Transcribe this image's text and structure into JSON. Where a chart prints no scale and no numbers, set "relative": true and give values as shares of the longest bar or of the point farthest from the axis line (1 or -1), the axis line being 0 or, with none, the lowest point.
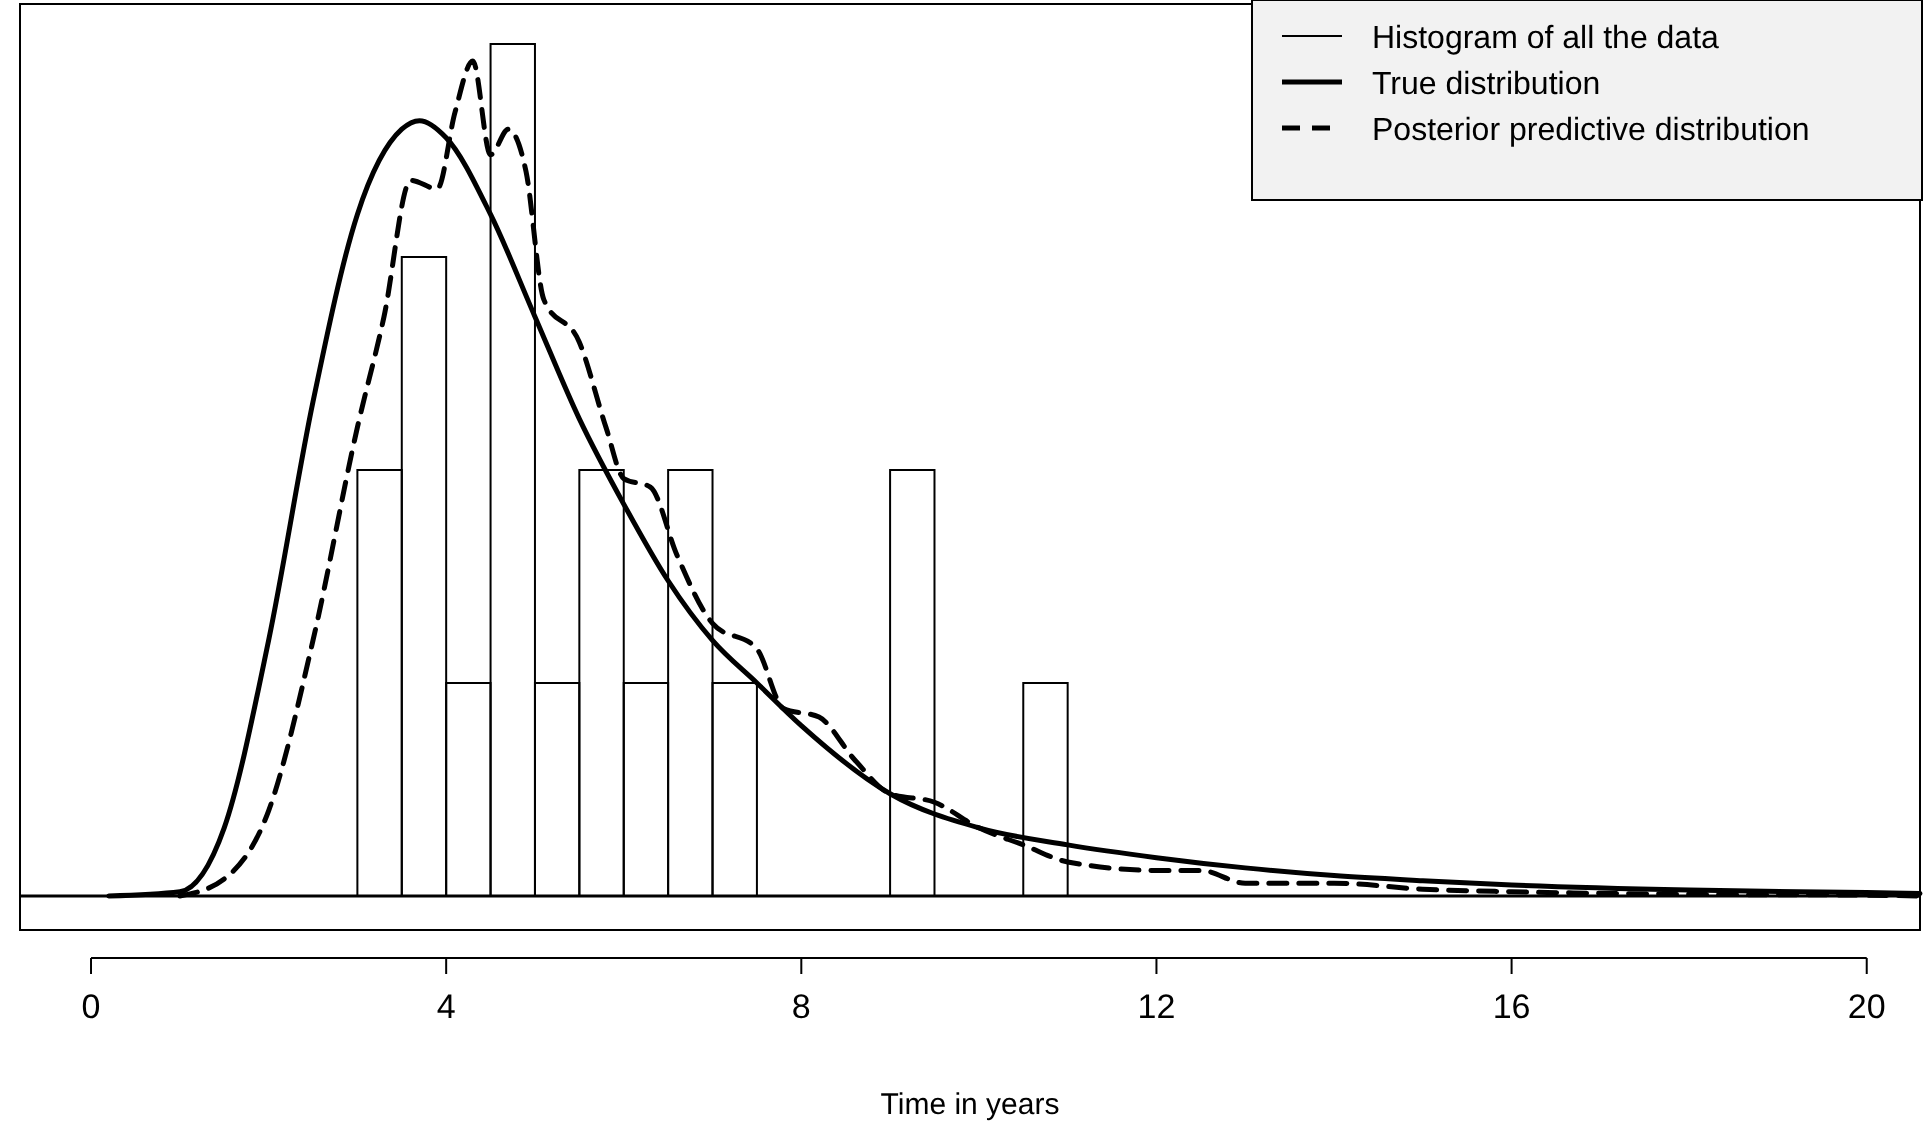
{
  "chart_data": {
    "type": "histogram",
    "relative": true,
    "xlabel": "Time in years",
    "xlim": [
      -0.8,
      20.6
    ],
    "xticks": [
      0,
      4,
      8,
      12,
      16,
      20
    ],
    "legend": "top right",
    "series": [
      {
        "name": "Histogram of all the data",
        "color": "#000000",
        "bins": [
          3,
          3.5,
          4,
          4.5,
          5,
          5.5,
          6,
          6.5,
          7,
          7.5,
          8,
          8.5,
          9,
          9.5,
          10,
          10.5,
          11
        ],
        "values": [
          0.5,
          0.75,
          0.25,
          1,
          0.25,
          0.5,
          0.25,
          0.5,
          0.25,
          0,
          0,
          0,
          0.5,
          0,
          0,
          0.25
        ]
      },
      {
        "type": "line",
        "name": "True distribution",
        "color": "#000000",
        "line_style": "solid",
        "x": [
          0.2,
          1,
          1.5,
          2,
          2.5,
          3,
          3.5,
          3.7,
          4,
          4.5,
          5,
          5.5,
          6,
          6.5,
          7,
          7.5,
          8,
          9,
          10,
          11,
          12,
          13,
          14,
          15,
          16,
          18,
          20,
          20.6
        ],
        "values": [
          0,
          0.005,
          0.08,
          0.3,
          0.58,
          0.8,
          0.9,
          0.91,
          0.89,
          0.8,
          0.68,
          0.56,
          0.46,
          0.37,
          0.3,
          0.25,
          0.2,
          0.12,
          0.08,
          0.06,
          0.045,
          0.033,
          0.024,
          0.018,
          0.013,
          0.007,
          0.004,
          0.003
        ]
      },
      {
        "type": "line",
        "name": "Posterior predictive distribution",
        "color": "#000000",
        "line_style": "dashed",
        "x": [
          1,
          1.5,
          2,
          2.5,
          3,
          3.3,
          3.6,
          3.9,
          4.1,
          4.3,
          4.5,
          4.7,
          4.9,
          5.1,
          5.5,
          5.8,
          6,
          6.3,
          6.6,
          7,
          7.5,
          7.8,
          8.2,
          8.6,
          9,
          9.5,
          10,
          10.5,
          11,
          12,
          12.5,
          13,
          14,
          15,
          16,
          18,
          20,
          20.6
        ],
        "values": [
          0,
          0.02,
          0.1,
          0.3,
          0.55,
          0.68,
          0.84,
          0.83,
          0.92,
          0.98,
          0.87,
          0.9,
          0.85,
          0.7,
          0.65,
          0.55,
          0.49,
          0.48,
          0.4,
          0.32,
          0.29,
          0.22,
          0.21,
          0.16,
          0.12,
          0.11,
          0.08,
          0.06,
          0.04,
          0.03,
          0.03,
          0.015,
          0.015,
          0.008,
          0.005,
          0.002,
          0.001,
          0
        ]
      }
    ]
  }
}
